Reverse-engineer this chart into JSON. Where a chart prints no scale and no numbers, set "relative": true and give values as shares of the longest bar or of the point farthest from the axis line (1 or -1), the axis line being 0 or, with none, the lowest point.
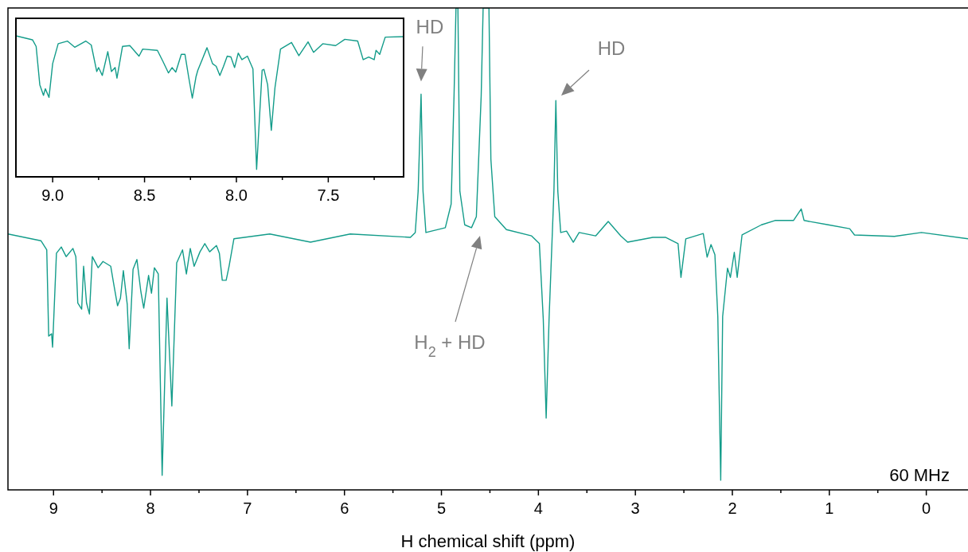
{
  "chart_data": [
    {
      "type": "line",
      "relative": true,
      "xlabel": "H chemical shift (ppm)",
      "xlim": [
        9.47,
        -0.43
      ],
      "xticks": [
        9,
        {
          "value": 8.5,
          "label": null
        },
        8,
        {
          "value": 7.5,
          "label": null
        },
        7,
        {
          "value": 6.5,
          "label": null
        },
        6,
        {
          "value": 5.5,
          "label": null
        },
        5,
        {
          "value": 4.5,
          "label": null
        },
        4,
        {
          "value": 3.5,
          "label": null
        },
        3,
        {
          "value": 2.5,
          "label": null
        },
        2,
        {
          "value": 1.5,
          "label": null
        },
        1,
        {
          "value": 0.5,
          "label": null
        },
        0
      ],
      "annotations": [
        {
          "text": "HD",
          "x": 5.21,
          "y": 0.821
        },
        "HD",
        "H$_{2}$ + HD",
        "60 MHz"
      ],
      "series": [
        {
          "color": "#139c8a",
          "x": [
            9.47,
            9.13,
            9.07,
            9.05,
            9.02,
            9.01,
            8.97,
            8.92,
            8.87,
            8.8,
            8.77,
            8.75,
            8.71,
            8.69,
            8.66,
            8.63,
            8.6,
            8.54,
            8.49,
            8.41,
            8.38,
            8.34,
            8.31,
            8.28,
            8.24,
            8.22,
            8.18,
            8.14,
            8.1,
            8.07,
            8.02,
            7.99,
            7.96,
            7.92,
            7.88,
            7.83,
            7.78,
            7.73,
            7.67,
            7.63,
            7.59,
            7.55,
            7.49,
            7.44,
            7.39,
            7.32,
            7.29,
            7.26,
            7.22,
            7.19,
            7.14,
            6.77,
            6.35,
            5.94,
            5.32,
            5.27,
            5.24,
            5.21,
            5.19,
            5.16,
            4.96,
            4.9,
            4.87,
            4.85,
            4.83,
            4.81,
            4.76,
            4.69,
            4.64,
            4.59,
            4.57,
            4.51,
            4.49,
            4.45,
            4.33,
            4.07,
            3.99,
            3.95,
            3.92,
            3.89,
            3.86,
            3.84,
            3.82,
            3.8,
            3.77,
            3.71,
            3.64,
            3.58,
            3.41,
            3.28,
            3.15,
            3.08,
            2.82,
            2.69,
            2.56,
            2.53,
            2.48,
            2.3,
            2.26,
            2.22,
            2.18,
            2.15,
            2.12,
            2.1,
            2.05,
            2.02,
            1.98,
            1.95,
            1.9,
            1.7,
            1.56,
            1.37,
            1.29,
            1.26,
            1.01,
            0.79,
            0.74,
            0.33,
            0.05,
            -0.43
          ],
          "values": [
            0.531,
            0.517,
            0.498,
            0.319,
            0.324,
            0.296,
            0.491,
            0.504,
            0.484,
            0.501,
            0.484,
            0.388,
            0.375,
            0.464,
            0.388,
            0.365,
            0.484,
            0.461,
            0.474,
            0.464,
            0.428,
            0.382,
            0.398,
            0.455,
            0.385,
            0.293,
            0.458,
            0.478,
            0.412,
            0.377,
            0.445,
            0.408,
            0.461,
            0.448,
            0.03,
            0.398,
            0.174,
            0.471,
            0.498,
            0.448,
            0.501,
            0.464,
            0.494,
            0.511,
            0.494,
            0.507,
            0.491,
            0.435,
            0.435,
            0.464,
            0.521,
            0.531,
            0.514,
            0.531,
            0.524,
            0.534,
            0.62,
            0.821,
            0.62,
            0.534,
            0.544,
            0.593,
            0.818,
            1,
            1,
            0.62,
            0.55,
            0.544,
            0.567,
            0.818,
            1,
            1,
            0.686,
            0.567,
            0.54,
            0.527,
            0.511,
            0.355,
            0.149,
            0.355,
            0.514,
            0.62,
            0.808,
            0.62,
            0.534,
            0.537,
            0.514,
            0.534,
            0.527,
            0.557,
            0.527,
            0.514,
            0.524,
            0.524,
            0.511,
            0.441,
            0.521,
            0.532,
            0.483,
            0.509,
            0.488,
            0.36,
            0.02,
            0.36,
            0.46,
            0.441,
            0.493,
            0.441,
            0.529,
            0.55,
            0.559,
            0.559,
            0.583,
            0.559,
            0.55,
            0.542,
            0.529,
            0.526,
            0.534,
            0.521
          ]
        }
      ]
    },
    {
      "type": "line",
      "relative": true,
      "xlim": [
        9.2,
        7.09
      ],
      "xticks": [
        {
          "value": 9,
          "label": "9.0"
        },
        {
          "value": 8.75,
          "label": null
        },
        8.5,
        {
          "value": 8.25,
          "label": null
        },
        {
          "value": 8,
          "label": "8.0"
        },
        {
          "value": 7.75,
          "label": null
        },
        7.5,
        {
          "value": 7.25,
          "label": null
        }
      ],
      "series": [
        {
          "color": "#139c8a",
          "x": [
            9.2,
            9.11,
            9.09,
            9.07,
            9.05,
            9.04,
            9.02,
            9.0,
            8.97,
            8.92,
            8.88,
            8.82,
            8.79,
            8.76,
            8.75,
            8.73,
            8.7,
            8.68,
            8.66,
            8.65,
            8.62,
            8.58,
            8.53,
            8.51,
            8.43,
            8.4,
            8.37,
            8.35,
            8.33,
            8.3,
            8.28,
            8.26,
            8.24,
            8.22,
            8.21,
            8.16,
            8.13,
            8.11,
            8.09,
            8.07,
            8.05,
            8.03,
            8.01,
            7.99,
            7.97,
            7.94,
            7.91,
            7.89,
            7.86,
            7.85,
            7.83,
            7.81,
            7.79,
            7.76,
            7.7,
            7.66,
            7.61,
            7.58,
            7.53,
            7.46,
            7.41,
            7.34,
            7.31,
            7.28,
            7.25,
            7.24,
            7.22,
            7.19,
            7.09
          ],
          "values": [
            1,
            0.972,
            0.925,
            0.653,
            0.578,
            0.625,
            0.563,
            0.803,
            0.944,
            0.963,
            0.919,
            0.963,
            0.935,
            0.747,
            0.775,
            0.719,
            0.888,
            0.747,
            0.775,
            0.7,
            0.925,
            0.931,
            0.856,
            0.906,
            0.897,
            0.819,
            0.737,
            0.775,
            0.743,
            0.869,
            0.869,
            0.709,
            0.559,
            0.709,
            0.756,
            0.916,
            0.803,
            0.784,
            0.719,
            0.784,
            0.856,
            0.85,
            0.775,
            0.878,
            0.831,
            0.856,
            0.766,
            0.053,
            0.756,
            0.762,
            0.653,
            0.33,
            0.634,
            0.906,
            0.953,
            0.859,
            0.957,
            0.883,
            0.944,
            0.931,
            0.975,
            0.963,
            0.831,
            0.85,
            0.831,
            0.897,
            0.869,
            0.991,
            0.994
          ]
        }
      ]
    }
  ]
}
